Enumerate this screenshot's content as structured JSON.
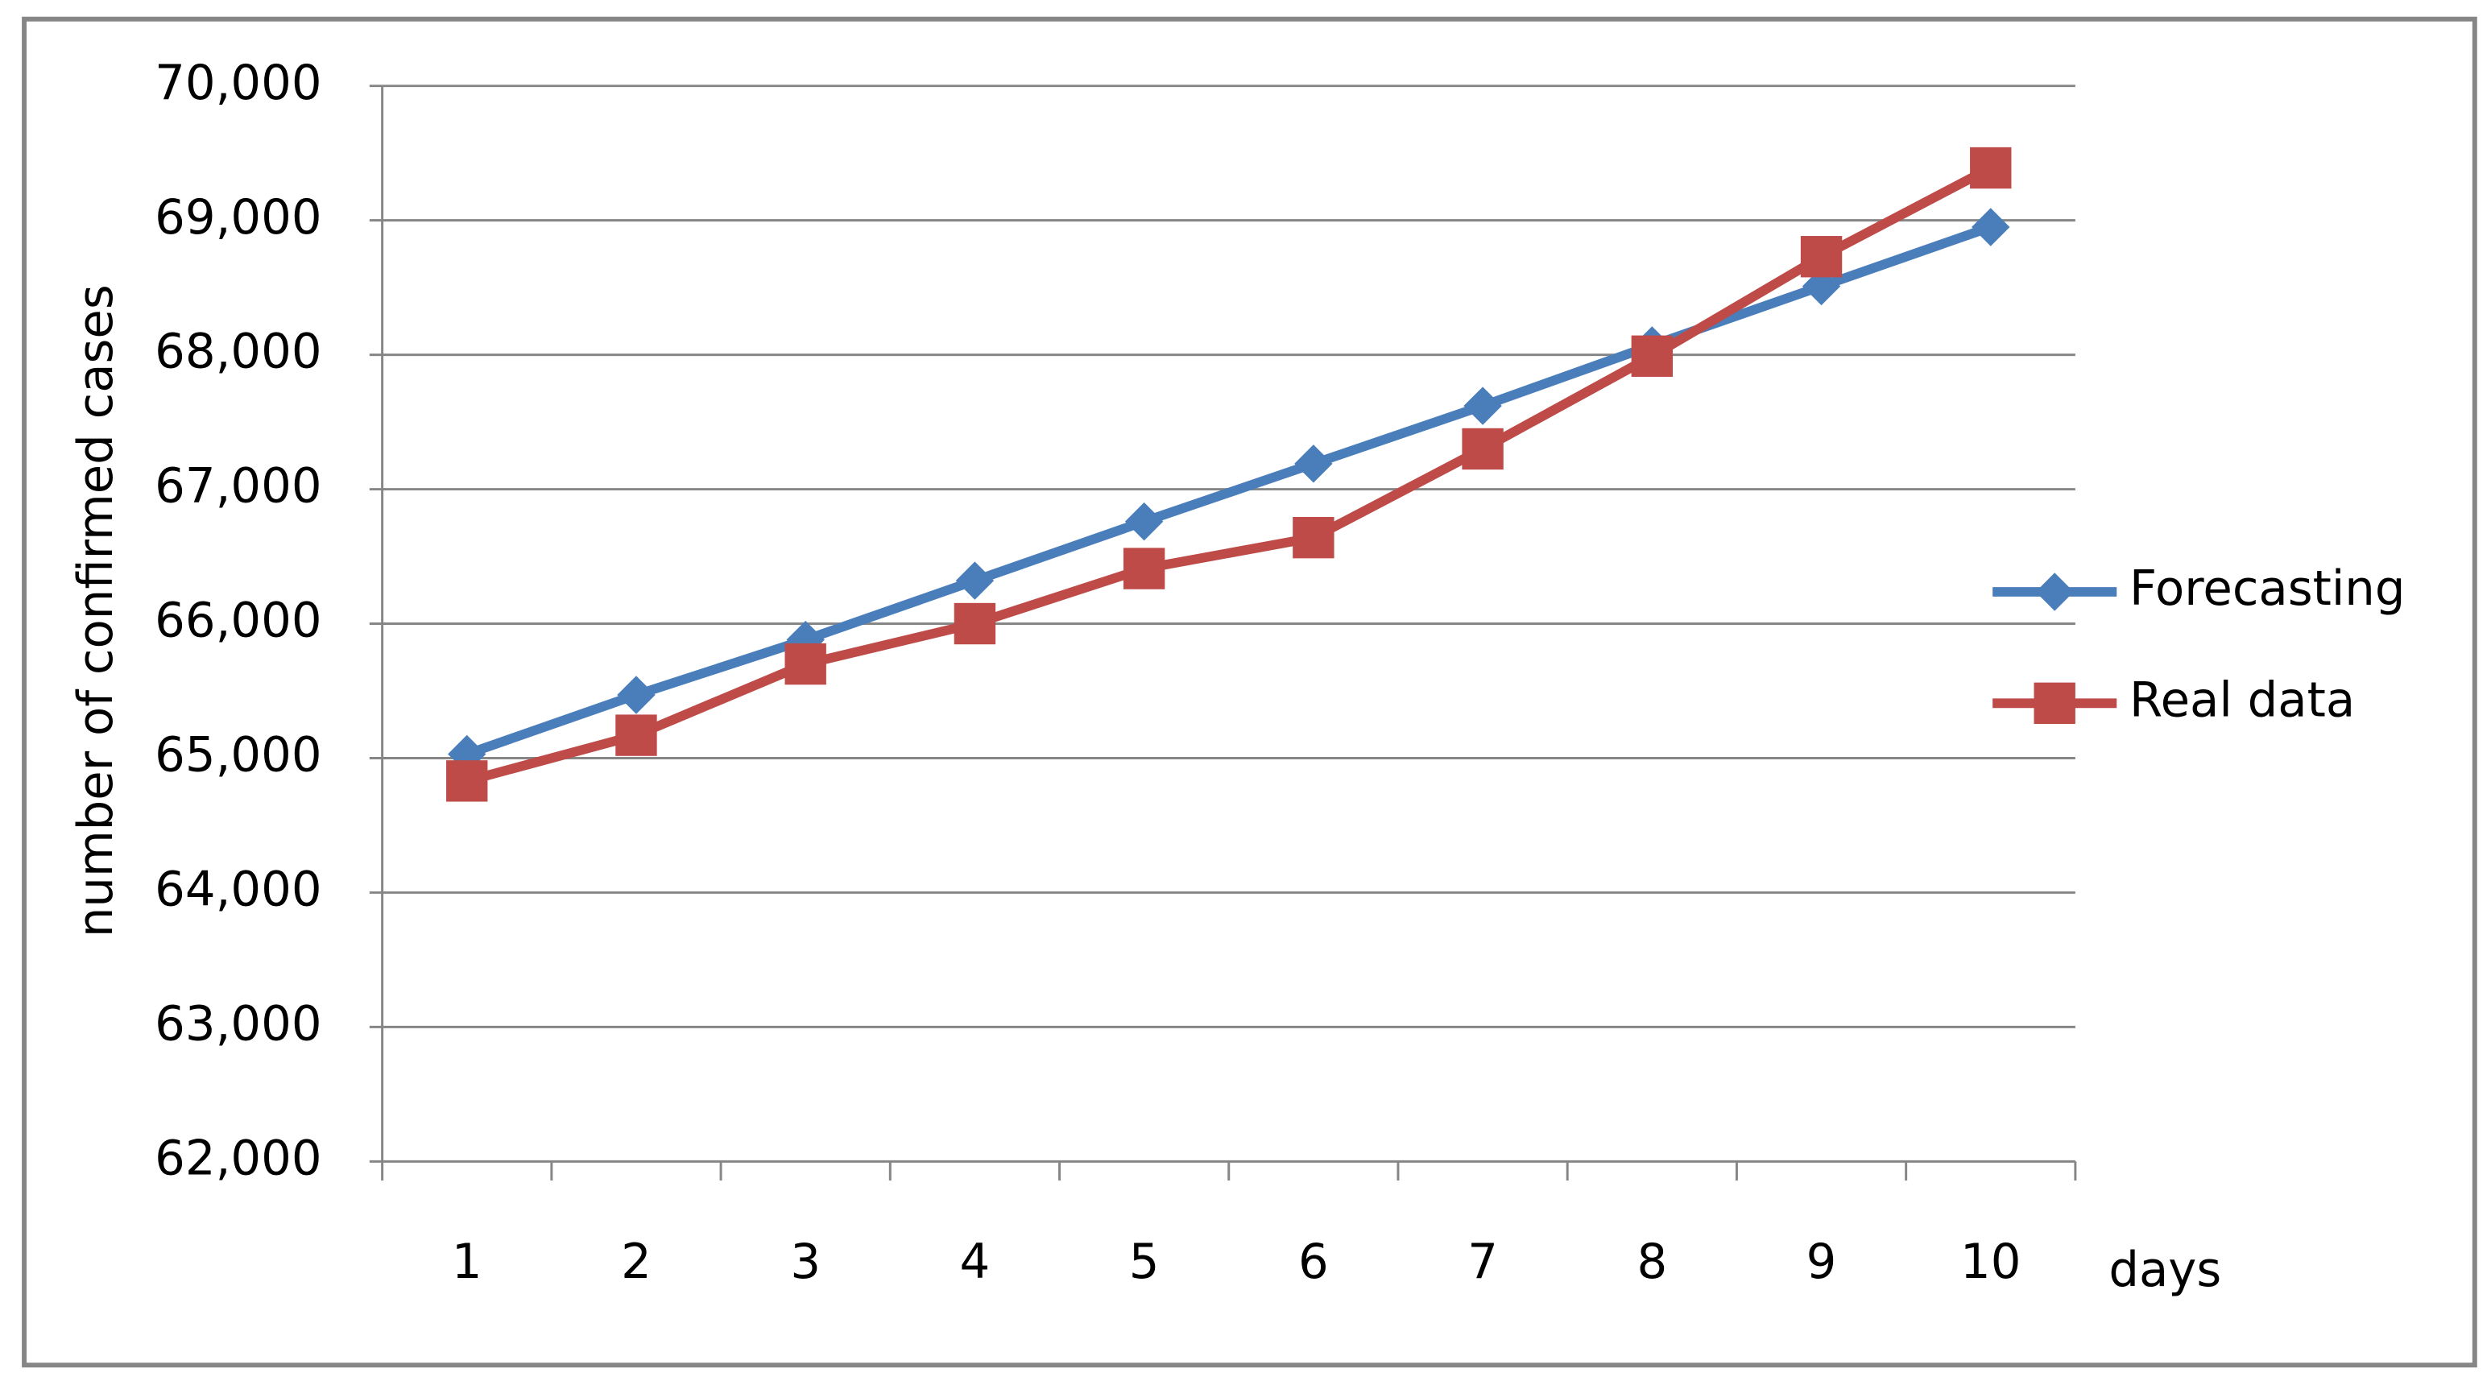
{
  "chart_data": {
    "type": "line",
    "x_label": "days",
    "y_label": "number of confirmed cases",
    "categories": [
      "1",
      "2",
      "3",
      "4",
      "5",
      "6",
      "7",
      "8",
      "9",
      "10"
    ],
    "series": [
      {
        "name": "Forecasting",
        "color": "#4a7ebb",
        "marker": "diamond",
        "values": [
          65030,
          65470,
          65880,
          66320,
          66760,
          67190,
          67620,
          68070,
          68510,
          68950
        ]
      },
      {
        "name": "Real data",
        "color": "#be4b48",
        "marker": "square",
        "values": [
          64830,
          65170,
          65700,
          66000,
          66410,
          66640,
          67300,
          67990,
          68730,
          69390
        ]
      }
    ],
    "ylim": [
      62000,
      70000
    ],
    "yticks": [
      {
        "value": 62000,
        "label": "62,000"
      },
      {
        "value": 63000,
        "label": "63,000"
      },
      {
        "value": 64000,
        "label": "64,000"
      },
      {
        "value": 65000,
        "label": "65,000"
      },
      {
        "value": 66000,
        "label": "66,000"
      },
      {
        "value": 67000,
        "label": "67,000"
      },
      {
        "value": 68000,
        "label": "68,000"
      },
      {
        "value": 69000,
        "label": "69,000"
      },
      {
        "value": 70000,
        "label": "70,000"
      }
    ],
    "grid": true,
    "legend": "right"
  }
}
